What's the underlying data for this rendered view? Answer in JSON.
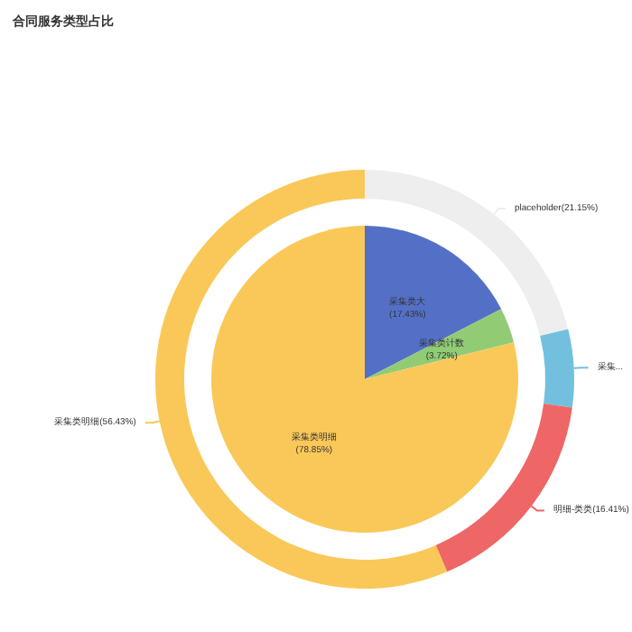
{
  "chart_data": [
    {
      "type": "pie",
      "title": "合同服务类型占比",
      "categories": [
        "采集类大",
        "采集类计数",
        "采集类明细"
      ],
      "values": [
        17.43,
        3.72,
        78.85
      ],
      "colors": [
        "#5470c6",
        "#91cc75",
        "#fac858"
      ],
      "value_labels": [
        "(17.43%)",
        "(3.72%)",
        "(78.85%)"
      ]
    },
    {
      "type": "donut",
      "categories": [
        "placeholder",
        "采集...",
        "明细-类类",
        "采集类明细"
      ],
      "values": [
        21.15,
        6.01,
        16.41,
        56.43
      ],
      "colors": [
        "#eeeeee",
        "#73c0de",
        "#ee6666",
        "#fac858"
      ],
      "value_labels": [
        "(21.15%)",
        null,
        "(16.41%)",
        "(56.43%)"
      ]
    }
  ]
}
